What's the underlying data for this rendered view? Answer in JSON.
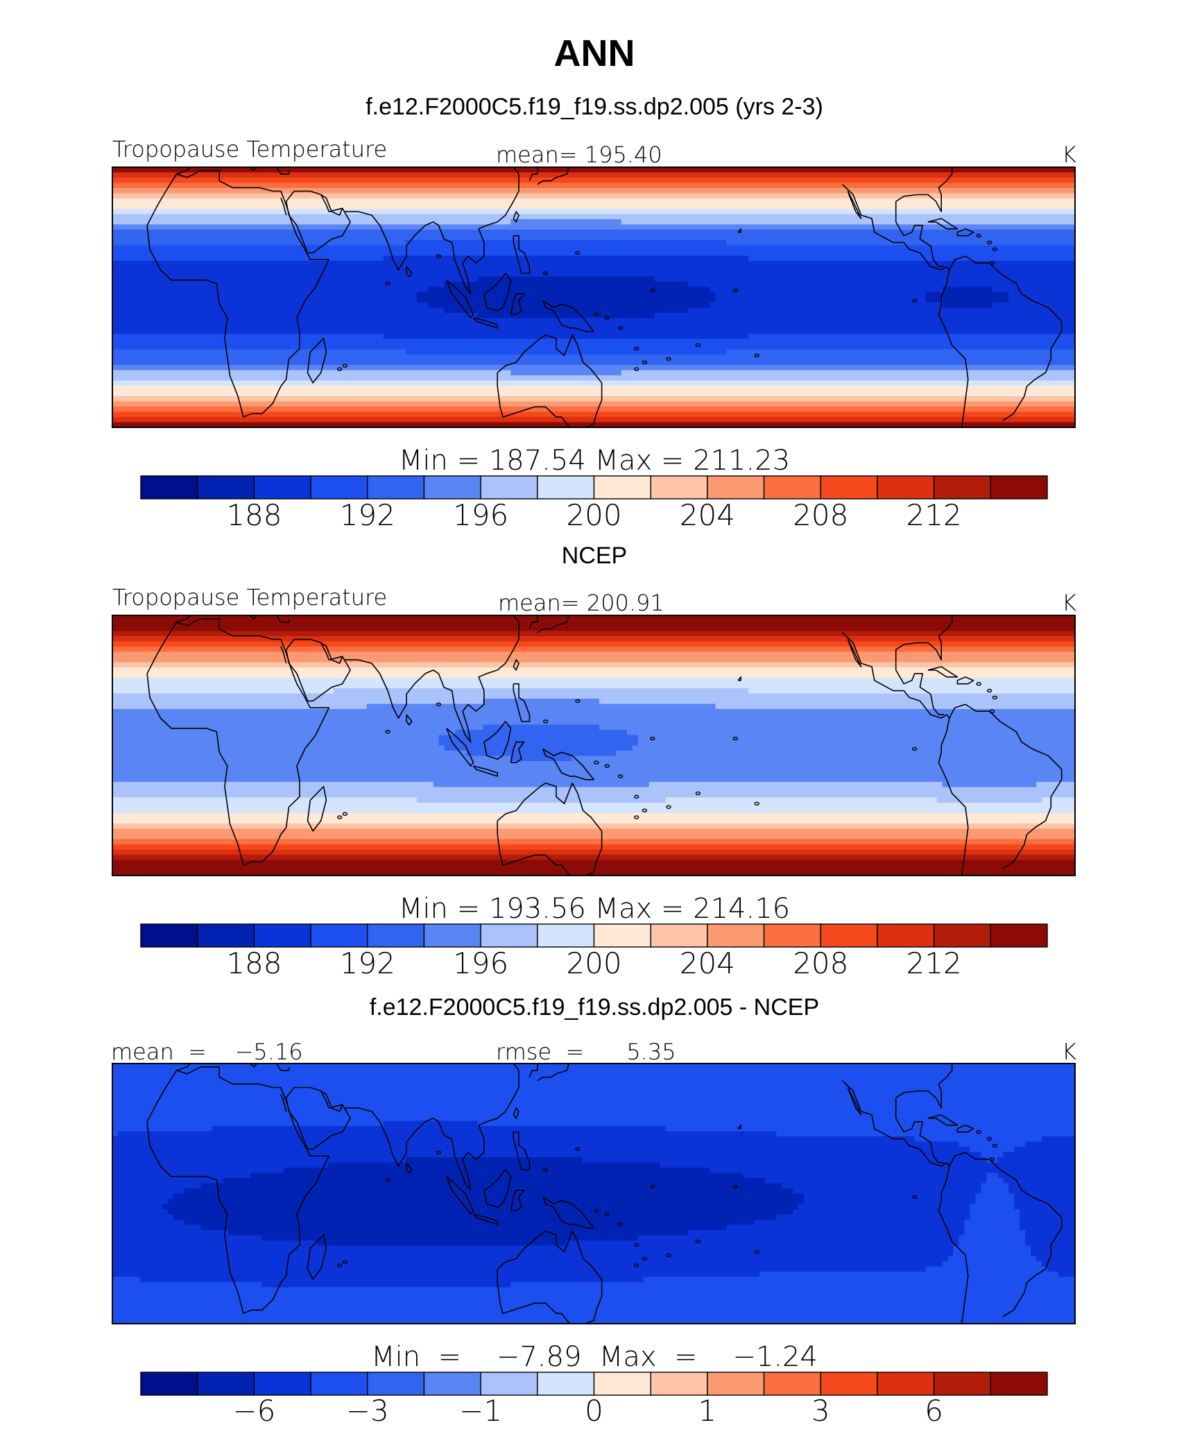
{
  "figure": {
    "main_title": "ANN"
  },
  "palette": {
    "colors": [
      "#00108c",
      "#0023b4",
      "#0a34d8",
      "#1b4ff0",
      "#3264f2",
      "#5a85f4",
      "#aac3fb",
      "#d5e4fd",
      "#fee9d6",
      "#fdc4a8",
      "#fb9a72",
      "#fb6e40",
      "#f5491b",
      "#dd3010",
      "#b31c0a",
      "#8c0b06"
    ]
  },
  "chart_data": [
    {
      "type": "heatmap",
      "title": "f.e12.F2000C5.f19_f19.ss.dp2.005 (yrs 2-3)",
      "left_label": "Tropopause Temperature",
      "center_label": "mean=  195.40",
      "units": "K",
      "minmax": "Min  =  187.54  Max  =  211.23",
      "colorbar_ticks": [
        "188",
        "192",
        "196",
        "200",
        "204",
        "208",
        "212"
      ],
      "colorbar_tick_positions": [
        2,
        4,
        6,
        8,
        10,
        12,
        14
      ],
      "field_kind": "model"
    },
    {
      "type": "heatmap",
      "title": "NCEP",
      "left_label": "Tropopause Temperature",
      "center_label": "mean=  200.91",
      "units": "K",
      "minmax": "Min  =  193.56  Max  =  214.16",
      "colorbar_ticks": [
        "188",
        "192",
        "196",
        "200",
        "204",
        "208",
        "212"
      ],
      "colorbar_tick_positions": [
        2,
        4,
        6,
        8,
        10,
        12,
        14
      ],
      "field_kind": "obs"
    },
    {
      "type": "heatmap",
      "title": "f.e12.F2000C5.f19_f19.ss.dp2.005 - NCEP",
      "left_label": "mean  =    −5.16",
      "center_label": "rmse  =      5.35",
      "units": "K",
      "minmax": "Min  =    −7.89  Max  =    −1.24",
      "colorbar_ticks": [
        "−6",
        "−3",
        "−1",
        "0",
        "1",
        "3",
        "6"
      ],
      "colorbar_tick_positions": [
        2,
        4,
        6,
        8,
        10,
        12,
        14
      ],
      "field_kind": "diff"
    }
  ]
}
